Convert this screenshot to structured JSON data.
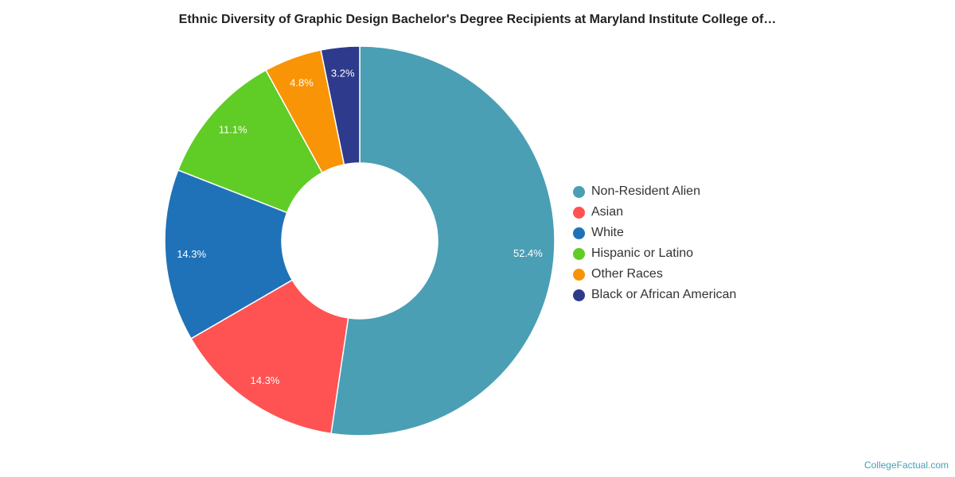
{
  "chart_data": {
    "type": "pie",
    "title": "Ethnic Diversity of Graphic Design Bachelor's Degree Recipients at Maryland Institute College of…",
    "donut": true,
    "legend_position": "right",
    "slices": [
      {
        "name": "Non-Resident Alien",
        "value": 52.4,
        "label": "52.4%",
        "color": "#4a9fb5"
      },
      {
        "name": "Asian",
        "value": 14.3,
        "label": "14.3%",
        "color": "#ff5252"
      },
      {
        "name": "White",
        "value": 14.3,
        "label": "14.3%",
        "color": "#1f72b8"
      },
      {
        "name": "Hispanic or Latino",
        "value": 11.1,
        "label": "11.1%",
        "color": "#60cc26"
      },
      {
        "name": "Other Races",
        "value": 4.8,
        "label": "4.8%",
        "color": "#f89406"
      },
      {
        "name": "Black or African American",
        "value": 3.2,
        "label": "3.2%",
        "color": "#2e3a8c"
      }
    ]
  },
  "credit": "CollegeFactual.com"
}
